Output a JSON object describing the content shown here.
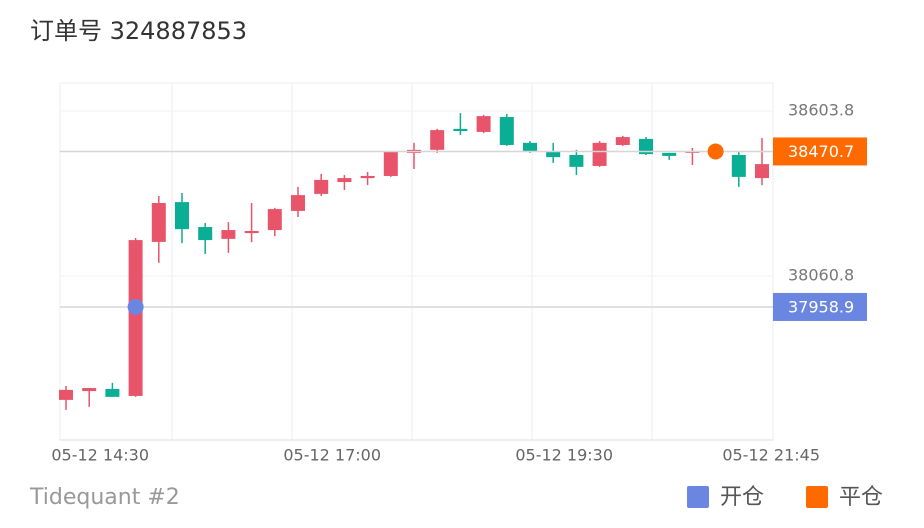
{
  "chart_data": {
    "type": "candlestick",
    "title": "订单号 324887853",
    "footer": "Tidequant #2",
    "categories": [
      null,
      "05-12 14:30",
      null,
      null,
      null,
      null,
      null,
      null,
      null,
      null,
      null,
      "05-12 17:00",
      null,
      null,
      null,
      null,
      null,
      null,
      null,
      null,
      null,
      "05-12 19:30",
      null,
      null,
      null,
      null,
      null,
      null,
      null,
      null,
      "05-12 21:45"
    ],
    "open": [
      37653,
      37682,
      37689,
      37666,
      38173,
      38304,
      38222,
      38183,
      38202,
      38212,
      38275,
      38331,
      38370,
      38383,
      38390,
      38466,
      38476,
      38545,
      38535,
      38584,
      38499,
      38472,
      38459,
      38423,
      38492,
      38512,
      38466,
      38466,
      null,
      38459,
      38383
    ],
    "close": [
      37686,
      37692,
      37663,
      38179,
      38301,
      38215,
      38179,
      38212,
      38209,
      38281,
      38327,
      38377,
      38383,
      38390,
      38469,
      38476,
      38541,
      38538,
      38587,
      38492,
      38469,
      38452,
      38420,
      38499,
      38518,
      38462,
      38456,
      38472,
      null,
      38387,
      38429
    ],
    "high": [
      37699,
      37692,
      37709,
      38186,
      38324,
      38334,
      38235,
      38238,
      38301,
      38285,
      38354,
      38397,
      38393,
      38403,
      38472,
      38499,
      38545,
      38597,
      38591,
      38594,
      38505,
      38499,
      38476,
      38505,
      38522,
      38518,
      38466,
      38482,
      null,
      38469,
      38515
    ],
    "low": [
      37620,
      37630,
      37663,
      37663,
      38104,
      38169,
      38133,
      38137,
      38172,
      38192,
      38255,
      38324,
      38344,
      38360,
      38387,
      38413,
      38466,
      38525,
      38531,
      38489,
      38466,
      38433,
      38393,
      38420,
      38489,
      38459,
      38443,
      38426,
      null,
      38354,
      38360
    ],
    "up_color": "#e8546a",
    "down_color": "#0aae94",
    "ylim": [
      37521,
      38696
    ],
    "yticks": [
      38060.8,
      38603.8
    ],
    "trades": [
      {
        "name": "开仓",
        "color": "#6b86e0",
        "price": 37958.9,
        "at": 3
      },
      {
        "name": "平仓",
        "color": "#ff6a00",
        "price": 38470.7,
        "at": 28
      }
    ]
  }
}
